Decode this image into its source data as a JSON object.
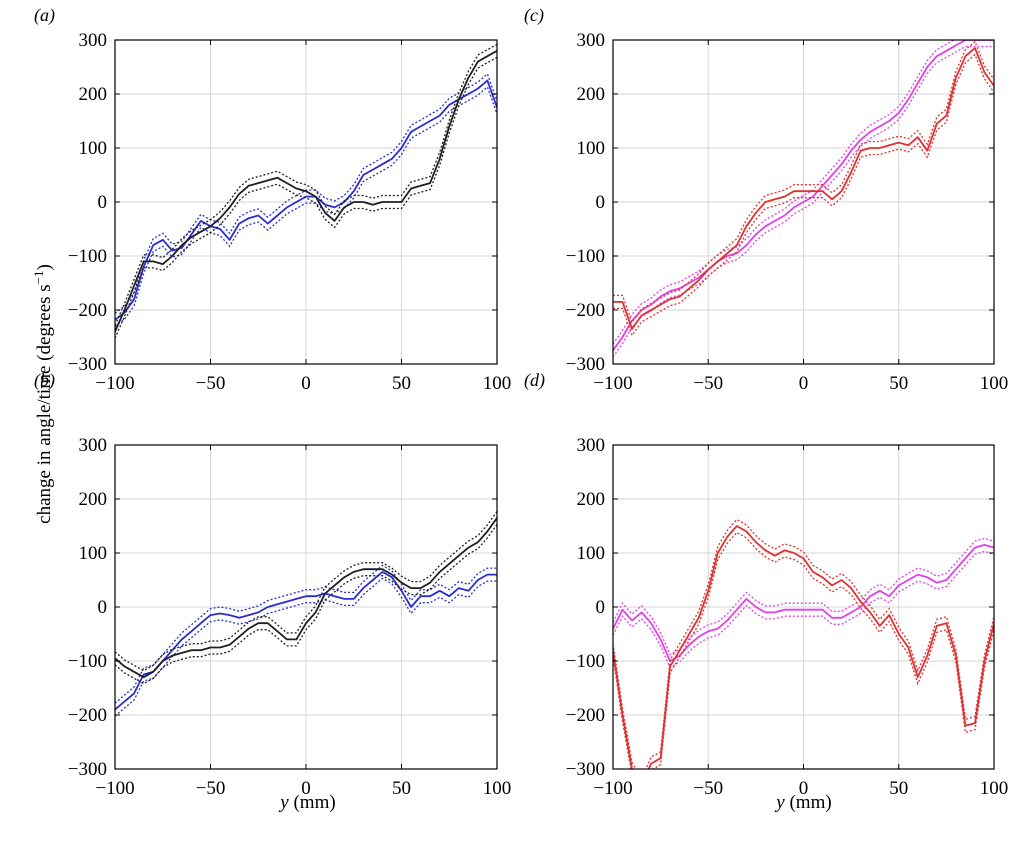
{
  "figure": {
    "ylabel_main": "change in angle/time (degrees s",
    "ylabel_sup": "−1",
    "ylabel_tail": ")",
    "xlabel_var": "y",
    "xlabel_unit": " (mm)"
  },
  "colors": {
    "blue": "#2b2bd6",
    "black": "#1e1e1e",
    "magenta": "#e43fe8",
    "red": "#e03030",
    "grid": "#d6d6d6"
  },
  "chart_data": [
    {
      "panel_label": "(a)",
      "type": "line",
      "xlim": [
        -100,
        100
      ],
      "ylim": [
        -300,
        300
      ],
      "xticks": [
        -100,
        -50,
        0,
        50,
        100
      ],
      "yticks": [
        -300,
        -200,
        -100,
        0,
        100,
        200,
        300
      ],
      "x_tick_labels": [
        "−100",
        "−50",
        "0",
        "50",
        "100"
      ],
      "y_tick_labels": [
        "−300",
        "−200",
        "−100",
        "0",
        "100",
        "200",
        "300"
      ],
      "grid": true,
      "band_halfwidth": 12,
      "series": [
        {
          "color": "blue",
          "x": [
            -100,
            -95,
            -90,
            -85,
            -80,
            -75,
            -70,
            -65,
            -60,
            -55,
            -50,
            -45,
            -40,
            -35,
            -30,
            -25,
            -20,
            -15,
            -10,
            -5,
            0,
            5,
            10,
            15,
            20,
            25,
            30,
            35,
            40,
            45,
            50,
            55,
            60,
            65,
            70,
            75,
            80,
            85,
            90,
            95,
            100
          ],
          "y": [
            -218,
            -205,
            -180,
            -120,
            -80,
            -70,
            -90,
            -85,
            -60,
            -35,
            -45,
            -50,
            -70,
            -40,
            -30,
            -25,
            -40,
            -25,
            -10,
            0,
            10,
            10,
            -5,
            -10,
            0,
            20,
            50,
            60,
            70,
            80,
            100,
            130,
            140,
            150,
            160,
            180,
            190,
            200,
            210,
            225,
            175
          ]
        },
        {
          "color": "black",
          "x": [
            -100,
            -95,
            -90,
            -85,
            -80,
            -75,
            -70,
            -65,
            -60,
            -55,
            -50,
            -45,
            -40,
            -35,
            -30,
            -25,
            -20,
            -15,
            -10,
            -5,
            0,
            5,
            10,
            15,
            20,
            25,
            30,
            35,
            40,
            45,
            50,
            55,
            60,
            65,
            70,
            75,
            80,
            85,
            90,
            95,
            100
          ],
          "y": [
            -240,
            -200,
            -155,
            -110,
            -110,
            -115,
            -100,
            -80,
            -65,
            -55,
            -45,
            -30,
            -10,
            15,
            30,
            35,
            40,
            45,
            35,
            25,
            20,
            10,
            -20,
            -35,
            -10,
            0,
            0,
            -5,
            0,
            0,
            0,
            25,
            30,
            35,
            80,
            140,
            190,
            230,
            260,
            270,
            280
          ]
        }
      ]
    },
    {
      "panel_label": "(c)",
      "type": "line",
      "xlim": [
        -100,
        100
      ],
      "ylim": [
        -300,
        300
      ],
      "xticks": [
        -100,
        -50,
        0,
        50,
        100
      ],
      "yticks": [
        -300,
        -200,
        -100,
        0,
        100,
        200,
        300
      ],
      "x_tick_labels": [
        "−100",
        "−50",
        "0",
        "50",
        "100"
      ],
      "y_tick_labels": [
        "−300",
        "−200",
        "−100",
        "0",
        "100",
        "200",
        "300"
      ],
      "grid": true,
      "band_halfwidth": 12,
      "series": [
        {
          "color": "magenta",
          "x": [
            -100,
            -95,
            -90,
            -85,
            -80,
            -75,
            -70,
            -65,
            -60,
            -55,
            -50,
            -45,
            -40,
            -35,
            -30,
            -25,
            -20,
            -15,
            -10,
            -5,
            0,
            5,
            10,
            15,
            20,
            25,
            30,
            35,
            40,
            45,
            50,
            55,
            60,
            65,
            70,
            75,
            80,
            85,
            90,
            95,
            100
          ],
          "y": [
            -275,
            -250,
            -220,
            -200,
            -190,
            -175,
            -165,
            -160,
            -150,
            -140,
            -125,
            -110,
            -100,
            -95,
            -80,
            -60,
            -45,
            -35,
            -25,
            -10,
            0,
            10,
            30,
            50,
            70,
            95,
            115,
            130,
            140,
            150,
            165,
            190,
            220,
            250,
            270,
            280,
            290,
            300,
            300,
            300,
            300
          ]
        },
        {
          "color": "red",
          "x": [
            -100,
            -95,
            -90,
            -85,
            -80,
            -75,
            -70,
            -65,
            -60,
            -55,
            -50,
            -45,
            -40,
            -35,
            -30,
            -25,
            -20,
            -15,
            -10,
            -5,
            0,
            5,
            10,
            15,
            20,
            25,
            30,
            35,
            40,
            45,
            50,
            55,
            60,
            65,
            70,
            75,
            80,
            85,
            90,
            95,
            100
          ],
          "y": [
            -185,
            -185,
            -235,
            -210,
            -200,
            -190,
            -180,
            -175,
            -160,
            -145,
            -125,
            -110,
            -95,
            -80,
            -45,
            -20,
            0,
            5,
            10,
            20,
            20,
            20,
            20,
            5,
            20,
            55,
            95,
            100,
            100,
            105,
            110,
            105,
            120,
            95,
            145,
            160,
            230,
            270,
            285,
            240,
            215
          ]
        }
      ]
    },
    {
      "panel_label": "(b)",
      "type": "line",
      "xlim": [
        -100,
        100
      ],
      "ylim": [
        -300,
        300
      ],
      "xticks": [
        -100,
        -50,
        0,
        50,
        100
      ],
      "yticks": [
        -300,
        -200,
        -100,
        0,
        100,
        200,
        300
      ],
      "x_tick_labels": [
        "−100",
        "−50",
        "0",
        "50",
        "100"
      ],
      "y_tick_labels": [
        "−300",
        "−200",
        "−100",
        "0",
        "100",
        "200",
        "300"
      ],
      "grid": true,
      "band_halfwidth": 12,
      "series": [
        {
          "color": "blue",
          "x": [
            -100,
            -95,
            -90,
            -85,
            -80,
            -75,
            -70,
            -65,
            -60,
            -55,
            -50,
            -45,
            -40,
            -35,
            -30,
            -25,
            -20,
            -15,
            -10,
            -5,
            0,
            5,
            10,
            15,
            20,
            25,
            30,
            35,
            40,
            45,
            50,
            55,
            60,
            65,
            70,
            75,
            80,
            85,
            90,
            95,
            100
          ],
          "y": [
            -190,
            -175,
            -160,
            -125,
            -120,
            -100,
            -80,
            -60,
            -45,
            -30,
            -15,
            -12,
            -15,
            -20,
            -15,
            -10,
            0,
            5,
            10,
            15,
            20,
            20,
            25,
            20,
            15,
            15,
            35,
            50,
            65,
            55,
            30,
            0,
            20,
            20,
            30,
            20,
            35,
            30,
            50,
            60,
            60
          ]
        },
        {
          "color": "black",
          "x": [
            -100,
            -95,
            -90,
            -85,
            -80,
            -75,
            -70,
            -65,
            -60,
            -55,
            -50,
            -45,
            -40,
            -35,
            -30,
            -25,
            -20,
            -15,
            -10,
            -5,
            0,
            5,
            10,
            15,
            20,
            25,
            30,
            35,
            40,
            45,
            50,
            55,
            60,
            65,
            70,
            75,
            80,
            85,
            90,
            95,
            100
          ],
          "y": [
            -95,
            -110,
            -120,
            -130,
            -120,
            -100,
            -90,
            -85,
            -80,
            -80,
            -75,
            -75,
            -70,
            -55,
            -40,
            -30,
            -30,
            -45,
            -60,
            -60,
            -30,
            -10,
            25,
            40,
            55,
            65,
            70,
            70,
            70,
            60,
            45,
            35,
            35,
            45,
            65,
            80,
            95,
            110,
            120,
            140,
            165
          ]
        }
      ]
    },
    {
      "panel_label": "(d)",
      "type": "line",
      "xlim": [
        -100,
        100
      ],
      "ylim": [
        -300,
        300
      ],
      "xticks": [
        -100,
        -50,
        0,
        50,
        100
      ],
      "yticks": [
        -300,
        -200,
        -100,
        0,
        100,
        200,
        300
      ],
      "x_tick_labels": [
        "−100",
        "−50",
        "0",
        "50",
        "100"
      ],
      "y_tick_labels": [
        "−300",
        "−200",
        "−100",
        "0",
        "100",
        "200",
        "300"
      ],
      "grid": true,
      "band_halfwidth": 12,
      "series": [
        {
          "color": "magenta",
          "x": [
            -100,
            -95,
            -90,
            -85,
            -80,
            -75,
            -70,
            -65,
            -60,
            -55,
            -50,
            -45,
            -40,
            -35,
            -30,
            -25,
            -20,
            -15,
            -10,
            -5,
            0,
            5,
            10,
            15,
            20,
            25,
            30,
            35,
            40,
            45,
            50,
            55,
            60,
            65,
            70,
            75,
            80,
            85,
            90,
            95,
            100
          ],
          "y": [
            -40,
            -5,
            -25,
            -10,
            -30,
            -60,
            -100,
            -90,
            -70,
            -55,
            -45,
            -40,
            -25,
            -5,
            15,
            0,
            -10,
            -10,
            -5,
            -5,
            -5,
            -5,
            -5,
            -20,
            -20,
            -10,
            0,
            20,
            30,
            20,
            40,
            50,
            60,
            55,
            45,
            50,
            70,
            90,
            110,
            115,
            110
          ]
        },
        {
          "color": "red",
          "x": [
            -100,
            -95,
            -90,
            -85,
            -80,
            -75,
            -70,
            -65,
            -60,
            -55,
            -50,
            -45,
            -40,
            -35,
            -30,
            -25,
            -20,
            -15,
            -10,
            -5,
            0,
            5,
            10,
            15,
            20,
            25,
            30,
            35,
            40,
            45,
            50,
            55,
            60,
            65,
            70,
            75,
            80,
            85,
            90,
            95,
            100
          ],
          "y": [
            -80,
            -200,
            -300,
            -330,
            -290,
            -280,
            -110,
            -80,
            -50,
            -20,
            30,
            100,
            130,
            150,
            140,
            120,
            105,
            95,
            105,
            100,
            90,
            65,
            55,
            40,
            50,
            35,
            10,
            -10,
            -35,
            -15,
            -50,
            -75,
            -130,
            -90,
            -35,
            -30,
            -90,
            -220,
            -215,
            -100,
            -30
          ]
        }
      ]
    }
  ]
}
